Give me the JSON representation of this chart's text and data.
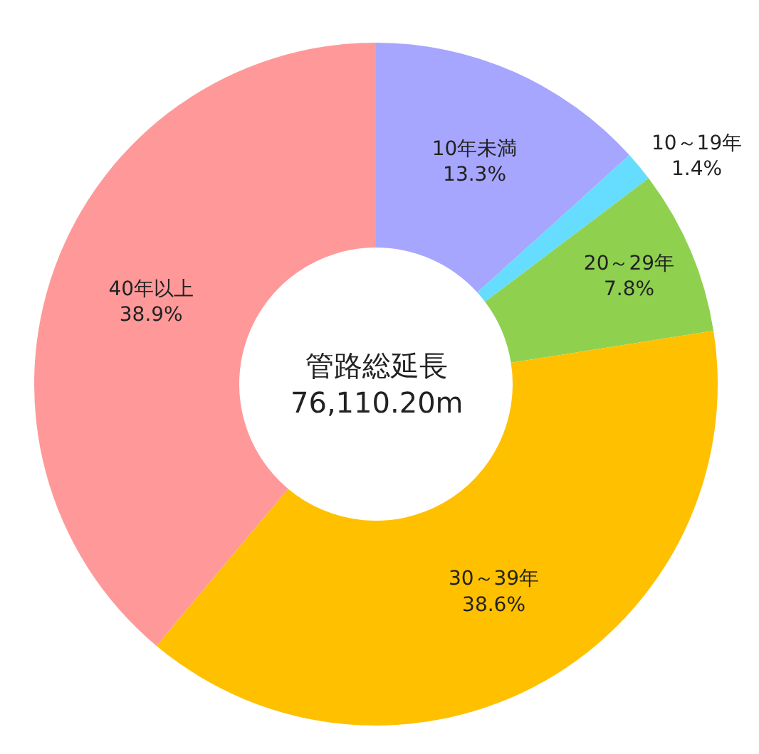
{
  "chart_data": {
    "type": "donut",
    "categories": [
      "10年未満",
      "10～19年",
      "20～29年",
      "30～39年",
      "40年以上"
    ],
    "values": [
      13.3,
      1.4,
      7.8,
      38.6,
      38.9
    ],
    "value_labels": [
      "13.3%",
      "1.4%",
      "7.8%",
      "38.6%",
      "38.9%"
    ],
    "colors": [
      "#a6a6ff",
      "#66ddff",
      "#8fd14f",
      "#ffc000",
      "#ff9999"
    ],
    "annotations": [
      "管路総延長\n76,110.20m"
    ],
    "legend": false
  }
}
